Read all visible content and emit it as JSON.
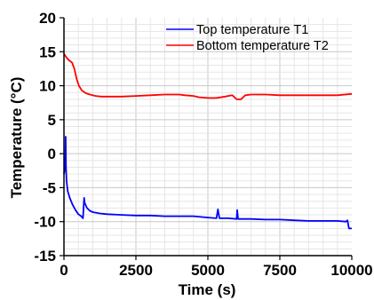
{
  "chart_data": {
    "type": "line",
    "title": "",
    "xlabel": "Time (s)",
    "ylabel": "Temperature (°C)",
    "xlim": [
      0,
      10000
    ],
    "ylim": [
      -15,
      20
    ],
    "xticks": [
      0,
      2500,
      5000,
      7500,
      10000
    ],
    "yticks": [
      -15,
      -10,
      -5,
      0,
      5,
      10,
      15,
      20
    ],
    "xtick_labels": [
      "0",
      "2500",
      "5000",
      "7500",
      "10000"
    ],
    "ytick_labels": [
      "-15",
      "-10",
      "-5",
      "0",
      "5",
      "10",
      "15",
      "20"
    ],
    "grid": true,
    "legend": {
      "placement": "top-right"
    },
    "series": [
      {
        "name": "Top temperature T1",
        "color": "#0000ff",
        "points": [
          [
            0,
            -3.0
          ],
          [
            40,
            -2.0
          ],
          [
            60,
            2.5
          ],
          [
            70,
            -2.0
          ],
          [
            90,
            -4.0
          ],
          [
            130,
            -5.5
          ],
          [
            200,
            -6.5
          ],
          [
            300,
            -7.5
          ],
          [
            400,
            -8.3
          ],
          [
            500,
            -8.9
          ],
          [
            600,
            -9.2
          ],
          [
            660,
            -9.5
          ],
          [
            700,
            -6.5
          ],
          [
            720,
            -7.2
          ],
          [
            800,
            -8.0
          ],
          [
            900,
            -8.4
          ],
          [
            1000,
            -8.6
          ],
          [
            1250,
            -8.8
          ],
          [
            1500,
            -8.9
          ],
          [
            2000,
            -9.0
          ],
          [
            2500,
            -9.1
          ],
          [
            3000,
            -9.1
          ],
          [
            3500,
            -9.2
          ],
          [
            4000,
            -9.2
          ],
          [
            4500,
            -9.2
          ],
          [
            5000,
            -9.4
          ],
          [
            5300,
            -9.5
          ],
          [
            5350,
            -8.2
          ],
          [
            5400,
            -9.5
          ],
          [
            5700,
            -9.5
          ],
          [
            6000,
            -9.6
          ],
          [
            6020,
            -8.3
          ],
          [
            6050,
            -9.6
          ],
          [
            6500,
            -9.6
          ],
          [
            7000,
            -9.7
          ],
          [
            7500,
            -9.7
          ],
          [
            8000,
            -9.8
          ],
          [
            8500,
            -9.9
          ],
          [
            9000,
            -9.9
          ],
          [
            9500,
            -9.9
          ],
          [
            9800,
            -10.0
          ],
          [
            9850,
            -9.8
          ],
          [
            9880,
            -10.5
          ],
          [
            9900,
            -11.0
          ],
          [
            10000,
            -11.0
          ]
        ]
      },
      {
        "name": "Bottom temperature T2",
        "color": "#ff0000",
        "points": [
          [
            0,
            14.7
          ],
          [
            80,
            14.2
          ],
          [
            160,
            13.8
          ],
          [
            280,
            13.4
          ],
          [
            360,
            12.5
          ],
          [
            440,
            11.0
          ],
          [
            520,
            10.0
          ],
          [
            620,
            9.3
          ],
          [
            760,
            8.9
          ],
          [
            900,
            8.7
          ],
          [
            1100,
            8.5
          ],
          [
            1300,
            8.4
          ],
          [
            1500,
            8.4
          ],
          [
            2000,
            8.4
          ],
          [
            2500,
            8.5
          ],
          [
            3000,
            8.6
          ],
          [
            3500,
            8.7
          ],
          [
            4000,
            8.7
          ],
          [
            4200,
            8.6
          ],
          [
            4500,
            8.5
          ],
          [
            4700,
            8.3
          ],
          [
            5000,
            8.2
          ],
          [
            5300,
            8.2
          ],
          [
            5600,
            8.4
          ],
          [
            5850,
            8.6
          ],
          [
            6000,
            8.0
          ],
          [
            6150,
            8.0
          ],
          [
            6300,
            8.6
          ],
          [
            6500,
            8.7
          ],
          [
            7000,
            8.7
          ],
          [
            7500,
            8.6
          ],
          [
            8000,
            8.6
          ],
          [
            8500,
            8.6
          ],
          [
            9000,
            8.6
          ],
          [
            9500,
            8.6
          ],
          [
            10000,
            8.8
          ]
        ]
      }
    ]
  }
}
